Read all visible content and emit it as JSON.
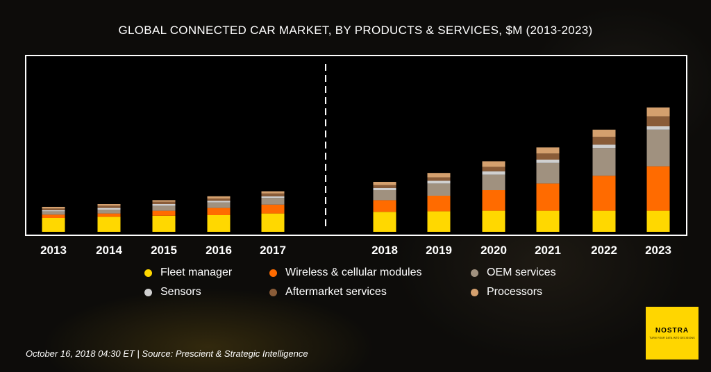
{
  "chart_data": {
    "type": "bar",
    "stacked": true,
    "title": "GLOBAL CONNECTED CAR MARKET, BY PRODUCTS & SERVICES, $M (2013-2023)",
    "categories": [
      "2013",
      "2014",
      "2015",
      "2016",
      "2017",
      "2018",
      "2019",
      "2020",
      "2021",
      "2022",
      "2023"
    ],
    "divider_between": [
      "2017",
      "2018"
    ],
    "series": [
      {
        "name": "Fleet manager",
        "color": "#ffd800",
        "values": [
          25,
          27,
          29,
          30,
          33,
          36,
          37,
          38,
          38,
          38,
          38
        ]
      },
      {
        "name": "Wireless & cellular modules",
        "color": "#ff6b00",
        "values": [
          6,
          6,
          9,
          13,
          16,
          21,
          28,
          37,
          49,
          63,
          80
        ]
      },
      {
        "name": "OEM services",
        "color": "#a0917f",
        "values": [
          6,
          7,
          9,
          10,
          12,
          18,
          22,
          28,
          37,
          50,
          66
        ]
      },
      {
        "name": "Sensors",
        "color": "#d0d0d0",
        "values": [
          2,
          3,
          3,
          3,
          3,
          4,
          5,
          6,
          6,
          6,
          6
        ]
      },
      {
        "name": "Aftermarket services",
        "color": "#8a5c38",
        "values": [
          3,
          4,
          4,
          4,
          5,
          5,
          6,
          8,
          11,
          14,
          18
        ]
      },
      {
        "name": "Processors",
        "color": "#d4a06e",
        "values": [
          3,
          3,
          3,
          4,
          4,
          6,
          8,
          10,
          11,
          13,
          16
        ]
      }
    ],
    "grid": false,
    "legend_position": "bottom"
  },
  "footer": "October 16, 2018 04:30 ET | Source: Prescient & Strategic Intelligence",
  "brand": {
    "name": "NOSTRA",
    "tagline": "TURN YOUR DATA INTO DECISIONS",
    "color": "#ffd600"
  }
}
